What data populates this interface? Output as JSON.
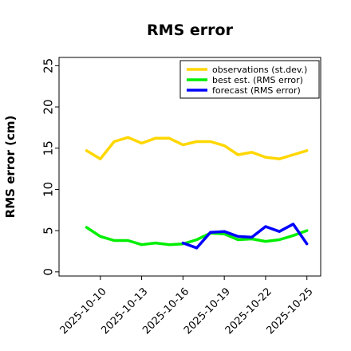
{
  "chart_data": {
    "type": "line",
    "title": "RMS error",
    "ylabel": "RMS error (cm)",
    "xlabel": "",
    "ylim": [
      -0.5,
      26
    ],
    "yticks": [
      0,
      5,
      10,
      15,
      20,
      25
    ],
    "x_is_date": true,
    "xlim": [
      "2025-10-07",
      "2025-10-26"
    ],
    "xtick_labels": [
      "2025-10-10",
      "2025-10-13",
      "2025-10-16",
      "2025-10-19",
      "2025-10-22",
      "2025-10-25"
    ],
    "highlight_tick": {
      "label": "2025-10-16",
      "color": "#228B22"
    },
    "grid": false,
    "legend_position": "top-right",
    "series": [
      {
        "name": "observations (st.dev.)",
        "color": "#FFD700",
        "x": [
          "2025-10-09",
          "2025-10-10",
          "2025-10-11",
          "2025-10-12",
          "2025-10-13",
          "2025-10-14",
          "2025-10-15",
          "2025-10-16",
          "2025-10-17",
          "2025-10-18",
          "2025-10-19",
          "2025-10-20",
          "2025-10-21",
          "2025-10-22",
          "2025-10-23",
          "2025-10-24",
          "2025-10-25"
        ],
        "values": [
          14.7,
          13.7,
          15.8,
          16.3,
          15.6,
          16.2,
          16.2,
          15.4,
          15.8,
          15.8,
          15.3,
          14.2,
          14.5,
          13.9,
          13.7,
          14.2,
          14.7
        ]
      },
      {
        "name": "best est. (RMS error)",
        "color": "#00EE00",
        "x": [
          "2025-10-09",
          "2025-10-10",
          "2025-10-11",
          "2025-10-12",
          "2025-10-13",
          "2025-10-14",
          "2025-10-15",
          "2025-10-16",
          "2025-10-17",
          "2025-10-18",
          "2025-10-19",
          "2025-10-20",
          "2025-10-21",
          "2025-10-22",
          "2025-10-23",
          "2025-10-24",
          "2025-10-25"
        ],
        "values": [
          5.4,
          4.3,
          3.8,
          3.8,
          3.3,
          3.5,
          3.3,
          3.4,
          3.9,
          4.7,
          4.6,
          3.9,
          4.0,
          3.7,
          3.9,
          4.4,
          5.0
        ]
      },
      {
        "name": "forecast (RMS error)",
        "color": "#0000FF",
        "x": [
          "2025-10-16",
          "2025-10-17",
          "2025-10-18",
          "2025-10-19",
          "2025-10-20",
          "2025-10-21",
          "2025-10-22",
          "2025-10-23",
          "2025-10-24",
          "2025-10-25"
        ],
        "values": [
          3.5,
          2.9,
          4.8,
          4.9,
          4.3,
          4.2,
          5.5,
          4.9,
          5.8,
          3.4
        ]
      }
    ]
  }
}
